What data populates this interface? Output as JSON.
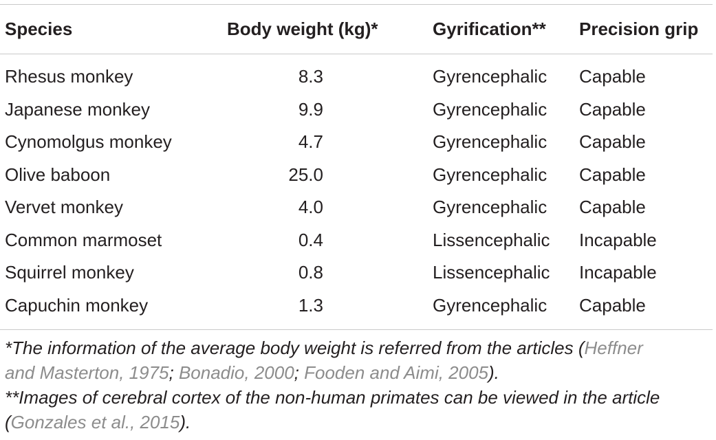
{
  "table": {
    "headers": [
      "Species",
      "Body weight (kg)*",
      "Gyrification**",
      "Precision grip"
    ],
    "rows": [
      [
        "Rhesus monkey",
        "8.3",
        "Gyrencephalic",
        "Capable"
      ],
      [
        "Japanese monkey",
        "9.9",
        "Gyrencephalic",
        "Capable"
      ],
      [
        "Cynomolgus monkey",
        "4.7",
        "Gyrencephalic",
        "Capable"
      ],
      [
        "Olive baboon",
        "25.0",
        "Gyrencephalic",
        "Capable"
      ],
      [
        "Vervet monkey",
        "4.0",
        "Gyrencephalic",
        "Capable"
      ],
      [
        "Common marmoset",
        "0.4",
        "Lissencephalic",
        "Incapable"
      ],
      [
        "Squirrel monkey",
        "0.8",
        "Lissencephalic",
        "Incapable"
      ],
      [
        "Capuchin monkey",
        "1.3",
        "Gyrencephalic",
        "Capable"
      ]
    ]
  },
  "footnotes": {
    "n1_line1_text": "*The information of the average body weight is referred from the articles (",
    "n1_line1_cite": "Heffner",
    "n1_line2_cite1": "and Masterton, 1975",
    "n1_sep1": "; ",
    "n1_line2_cite2": "Bonadio, 2000",
    "n1_sep2": "; ",
    "n1_line2_cite3": "Fooden and Aimi, 2005",
    "n1_end": ").",
    "n2_line1_text": "**Images of cerebral cortex of the non-human primates can be viewed in the article",
    "n2_open": "(",
    "n2_cite": "Gonzales et al., 2015",
    "n2_end": ")."
  }
}
